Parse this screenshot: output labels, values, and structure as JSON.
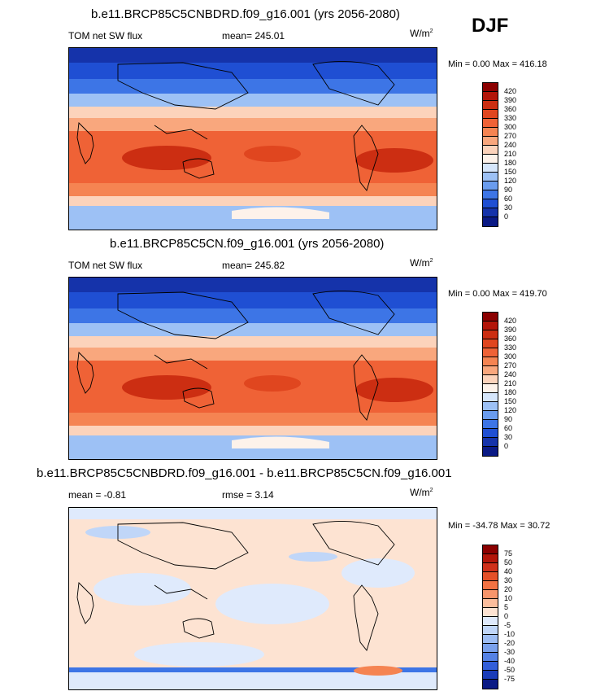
{
  "season": "DJF",
  "panels": [
    {
      "title": "b.e11.BRCP85C5CNBDRD.f09_g16.001 (yrs 2056-2080)",
      "left": "TOM net SW flux",
      "center": "mean= 245.01",
      "units": "W/m",
      "units_sup": "2",
      "stats": "Min =   0.00 Max = 416.18",
      "scale": "abs"
    },
    {
      "title": "b.e11.BRCP85C5CN.f09_g16.001 (yrs 2056-2080)",
      "left": "TOM net SW flux",
      "center": "mean= 245.82",
      "units": "W/m",
      "units_sup": "2",
      "stats": "Min =   0.00 Max = 419.70",
      "scale": "abs"
    },
    {
      "title": "b.e11.BRCP85C5CNBDRD.f09_g16.001 - b.e11.BRCP85C5CN.f09_g16.001",
      "left": "mean =  -0.81",
      "center": "rmse =   3.14",
      "units": "W/m",
      "units_sup": "2",
      "stats": "Min = -34.78 Max =  30.72",
      "scale": "diff"
    }
  ],
  "colorbars": {
    "abs": {
      "labels": [
        "420",
        "390",
        "360",
        "330",
        "300",
        "270",
        "240",
        "210",
        "180",
        "150",
        "120",
        "90",
        "60",
        "30",
        "0"
      ],
      "colors": [
        "#8b0000",
        "#b31509",
        "#cc2e12",
        "#e0461f",
        "#ef6236",
        "#f58452",
        "#f9a77d",
        "#fcd3bb",
        "#fdf2ea",
        "#d6e6fb",
        "#9dc1f5",
        "#6a9cee",
        "#3d75e6",
        "#1f4fd3",
        "#1533aa",
        "#0a1a85"
      ]
    },
    "diff": {
      "labels": [
        "75",
        "50",
        "40",
        "30",
        "20",
        "10",
        "5",
        "0",
        "-5",
        "-10",
        "-20",
        "-30",
        "-40",
        "-50",
        "-75"
      ],
      "colors": [
        "#8b0000",
        "#b31509",
        "#d0301a",
        "#e55028",
        "#f27243",
        "#f7956b",
        "#fbbd9c",
        "#fde3d2",
        "#dfeafc",
        "#c0d6f8",
        "#9dbdf3",
        "#7aa1ec",
        "#5582e5",
        "#325ed9",
        "#1a3cb8",
        "#0a1a85"
      ]
    }
  }
}
